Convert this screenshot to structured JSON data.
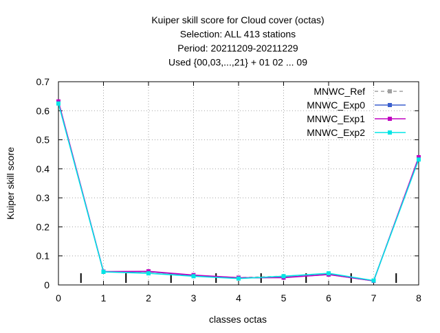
{
  "chart_data": {
    "type": "line",
    "title_lines": [
      "Kuiper skill score  for Cloud cover (octas)",
      "Selection: ALL    413 stations",
      "Period: 20211209-20211229",
      "Used {00,03,...,21} + 01 02 ... 09"
    ],
    "xlabel": "classes octas",
    "ylabel": "Kuiper skill score",
    "x": [
      0,
      1,
      2,
      3,
      4,
      5,
      6,
      7,
      8
    ],
    "xlim": [
      0,
      8
    ],
    "ylim": [
      0,
      0.7
    ],
    "xticks": [
      "0",
      "1",
      "2",
      "3",
      "4",
      "5",
      "6",
      "7",
      "8"
    ],
    "yticks": [
      "0",
      "0.1",
      "0.2",
      "0.3",
      "0.4",
      "0.5",
      "0.6",
      "0.7"
    ],
    "grid": true,
    "legend_position": "top-right",
    "sample_marks_at_x": [
      0.5,
      1.5,
      2.5,
      3.5,
      4.5,
      5.5,
      6.5,
      7.5
    ],
    "series": [
      {
        "name": "MNWC_Ref",
        "color": "#a0a0a0",
        "dashed": true,
        "values": [
          0.63,
          0.045,
          0.045,
          0.033,
          0.025,
          0.03,
          0.038,
          0.015,
          0.437
        ]
      },
      {
        "name": "MNWC_Exp0",
        "color": "#3a5fcd",
        "dashed": false,
        "values": [
          0.63,
          0.045,
          0.046,
          0.033,
          0.024,
          0.026,
          0.036,
          0.014,
          0.437
        ]
      },
      {
        "name": "MNWC_Exp1",
        "color": "#c000c0",
        "dashed": false,
        "values": [
          0.632,
          0.046,
          0.047,
          0.034,
          0.025,
          0.025,
          0.036,
          0.014,
          0.44
        ]
      },
      {
        "name": "MNWC_Exp2",
        "color": "#00e5e5",
        "dashed": false,
        "values": [
          0.625,
          0.045,
          0.04,
          0.03,
          0.022,
          0.03,
          0.04,
          0.015,
          0.432
        ]
      }
    ]
  }
}
